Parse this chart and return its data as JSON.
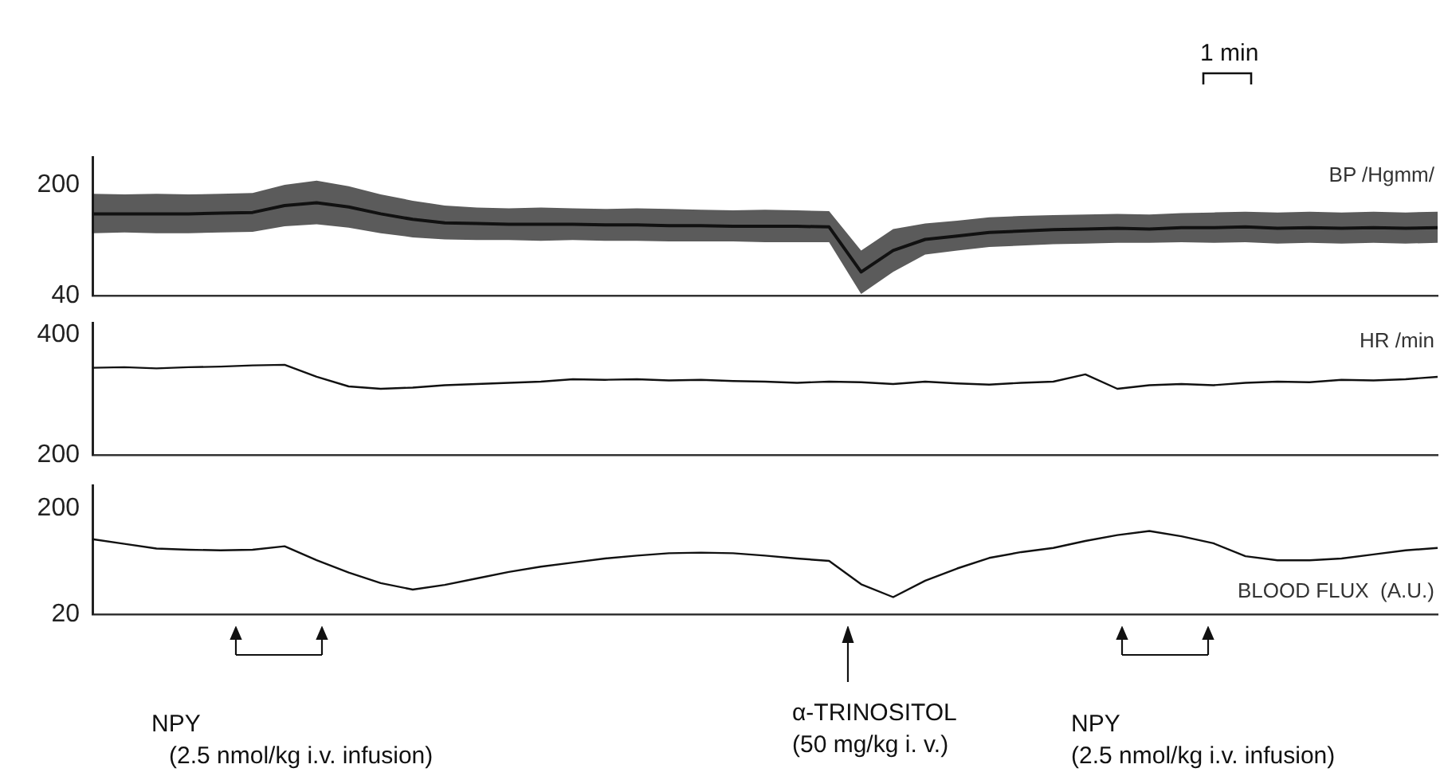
{
  "chart_data": [
    {
      "type": "line",
      "ylabel": "BP /Hgmm/",
      "categories": [
        null,
        null,
        null,
        null,
        null,
        null,
        null,
        null,
        null,
        null,
        null,
        null,
        null,
        null,
        null,
        null,
        null,
        null,
        null,
        null,
        null,
        null,
        null,
        null,
        null,
        null,
        null,
        null,
        null,
        null,
        null,
        null,
        null,
        null,
        null,
        null,
        null,
        null,
        null,
        null,
        null,
        null,
        null
      ],
      "series": [
        {
          "color": "#111111",
          "values": [
            158,
            158,
            158,
            158,
            159,
            160,
            170,
            174,
            168,
            158,
            150,
            145,
            144,
            143,
            143,
            143,
            142,
            142,
            141,
            141,
            140,
            140,
            140,
            139,
            74,
            105,
            121,
            126,
            131,
            133,
            135,
            136,
            137,
            136,
            138,
            138,
            139,
            137,
            138,
            137,
            138,
            137,
            138
          ],
          "lower": [
            130,
            131,
            130,
            130,
            131,
            132,
            140,
            143,
            138,
            130,
            124,
            121,
            120,
            120,
            119,
            120,
            119,
            119,
            118,
            118,
            118,
            117,
            117,
            117,
            42,
            74,
            99,
            105,
            110,
            112,
            114,
            115,
            116,
            116,
            117,
            116,
            117,
            115,
            116,
            115,
            116,
            115,
            116
          ],
          "upper": [
            187,
            186,
            187,
            186,
            187,
            188,
            200,
            206,
            198,
            186,
            177,
            170,
            167,
            166,
            167,
            166,
            165,
            166,
            165,
            164,
            163,
            164,
            163,
            162,
            105,
            136,
            144,
            148,
            153,
            155,
            156,
            157,
            158,
            157,
            159,
            160,
            161,
            160,
            161,
            160,
            161,
            160,
            161
          ]
        }
      ],
      "ylim": [
        40,
        240
      ],
      "yticks": [
        40,
        200
      ],
      "tick_labels": "y",
      "grid": false,
      "legend": false,
      "marker": "none",
      "line_style": "solid",
      "annotations": [
        "1 min"
      ]
    },
    {
      "type": "line",
      "ylabel": "HR /min",
      "categories": [
        null,
        null,
        null,
        null,
        null,
        null,
        null,
        null,
        null,
        null,
        null,
        null,
        null,
        null,
        null,
        null,
        null,
        null,
        null,
        null,
        null,
        null,
        null,
        null,
        null,
        null,
        null,
        null,
        null,
        null,
        null,
        null,
        null,
        null,
        null,
        null,
        null,
        null,
        null,
        null,
        null,
        null,
        null
      ],
      "series": [
        {
          "color": "#111111",
          "values": [
            345,
            346,
            344,
            346,
            347,
            349,
            350,
            330,
            314,
            310,
            312,
            316,
            318,
            320,
            322,
            326,
            325,
            326,
            324,
            325,
            323,
            322,
            320,
            322,
            321,
            318,
            322,
            319,
            317,
            320,
            322,
            334,
            310,
            316,
            318,
            316,
            320,
            322,
            321,
            325,
            324,
            326,
            330
          ]
        }
      ],
      "ylim": [
        200,
        420
      ],
      "yticks": [
        200,
        400
      ],
      "tick_labels": "y",
      "grid": false,
      "legend": false,
      "marker": "none",
      "line_style": "solid"
    },
    {
      "type": "line",
      "ylabel": "BLOOD FLUX  (A.U.)",
      "categories": [
        null,
        null,
        null,
        null,
        null,
        null,
        null,
        null,
        null,
        null,
        null,
        null,
        null,
        null,
        null,
        null,
        null,
        null,
        null,
        null,
        null,
        null,
        null,
        null,
        null,
        null,
        null,
        null,
        null,
        null,
        null,
        null,
        null,
        null,
        null,
        null,
        null,
        null,
        null,
        null,
        null,
        null,
        null
      ],
      "series": [
        {
          "color": "#111111",
          "values": [
            148,
            140,
            132,
            130,
            129,
            130,
            136,
            112,
            91,
            73,
            62,
            70,
            81,
            92,
            101,
            108,
            115,
            120,
            124,
            125,
            124,
            120,
            115,
            111,
            71,
            49,
            77,
            98,
            116,
            126,
            133,
            145,
            155,
            162,
            153,
            141,
            119,
            112,
            112,
            115,
            122,
            129,
            133
          ]
        }
      ],
      "ylim": [
        20,
        240
      ],
      "yticks": [
        20,
        200
      ],
      "tick_labels": "y",
      "grid": false,
      "legend": false,
      "marker": "none",
      "line_style": "solid",
      "annotations": [
        "NPY",
        "(2.5 nmol/kg i.v. infusion)",
        "α-TRINOSITOL",
        "(50 mg/kg i. v.)",
        "NPY",
        "(2.5 nmol/kg i.v. infusion)"
      ]
    }
  ]
}
